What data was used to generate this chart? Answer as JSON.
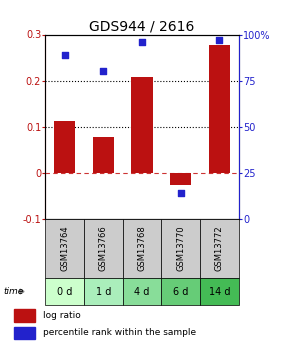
{
  "title": "GDS944 / 2616",
  "samples": [
    "GSM13764",
    "GSM13766",
    "GSM13768",
    "GSM13770",
    "GSM13772"
  ],
  "time_labels": [
    "0 d",
    "1 d",
    "4 d",
    "6 d",
    "14 d"
  ],
  "log_ratio": [
    0.113,
    0.077,
    0.208,
    -0.027,
    0.278
  ],
  "percentile_rank": [
    89,
    80,
    96,
    14,
    97
  ],
  "bar_color": "#bb1111",
  "dot_color": "#2222cc",
  "ylim_left": [
    -0.1,
    0.3
  ],
  "ylim_right": [
    0,
    100
  ],
  "sample_bg": "#cccccc",
  "time_bg_colors": [
    "#ccffcc",
    "#aaeebb",
    "#88dd99",
    "#66cc77",
    "#44bb55"
  ],
  "title_fontsize": 10,
  "tick_fontsize": 7,
  "legend_fontsize": 6.5
}
